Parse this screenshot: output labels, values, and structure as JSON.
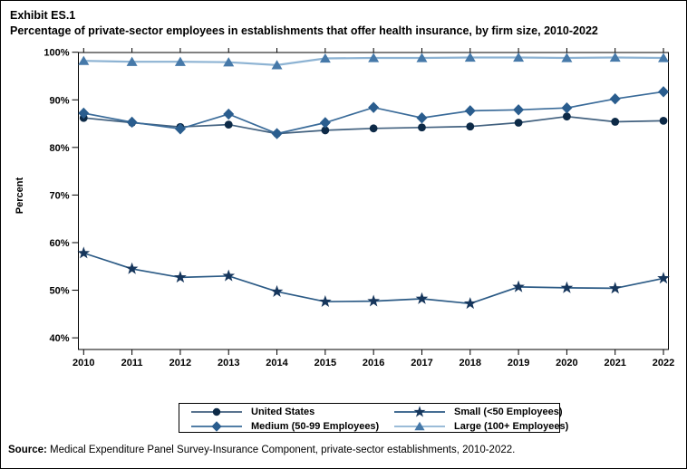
{
  "title": {
    "exhibit": "Exhibit ES.1",
    "subtitle": "Percentage of private-sector employees in establishments that offer health insurance, by firm size, 2010-2022"
  },
  "source": {
    "label": "Source:",
    "text": " Medical Expenditure Panel Survey-Insurance Component, private-sector establishments, 2010-2022."
  },
  "chart_data": {
    "type": "line",
    "x": [
      2010,
      2011,
      2012,
      2013,
      2014,
      2015,
      2016,
      2017,
      2018,
      2019,
      2020,
      2021,
      2022
    ],
    "ylabel": "Percent",
    "ylim": [
      37.5,
      100
    ],
    "yticks": [
      100,
      90,
      80,
      70,
      60,
      50,
      40
    ],
    "ytick_suffix": "%",
    "grid": false,
    "legend_position": "bottom",
    "frame": true,
    "series": [
      {
        "name": "United States",
        "marker": "circle",
        "marker_color": "#0d2a47",
        "line_color": "#42617f",
        "values": [
          86.2,
          85.2,
          84.3,
          84.8,
          82.9,
          83.6,
          84.0,
          84.2,
          84.4,
          85.2,
          86.5,
          85.4,
          85.6
        ]
      },
      {
        "name": "Medium (50-99 Employees)",
        "marker": "diamond",
        "marker_color": "#2a5d8e",
        "line_color": "#3a6b99",
        "values": [
          87.2,
          85.3,
          83.9,
          87.0,
          82.9,
          85.2,
          88.4,
          86.2,
          87.7,
          87.9,
          88.3,
          90.2,
          91.7
        ]
      },
      {
        "name": "Small (<50 Employees)",
        "marker": "star",
        "marker_color": "#16365c",
        "line_color": "#2b5a85",
        "values": [
          57.8,
          54.5,
          52.7,
          53.0,
          49.7,
          47.6,
          47.7,
          48.2,
          47.2,
          50.7,
          50.5,
          50.4,
          52.5
        ]
      },
      {
        "name": "Large (100+ Employees)",
        "marker": "triangle",
        "marker_color": "#4679a9",
        "line_color": "#8db3d3",
        "values": [
          98.2,
          98.0,
          98.0,
          97.9,
          97.3,
          98.7,
          98.8,
          98.8,
          98.9,
          98.9,
          98.8,
          98.9,
          98.8
        ]
      }
    ]
  }
}
